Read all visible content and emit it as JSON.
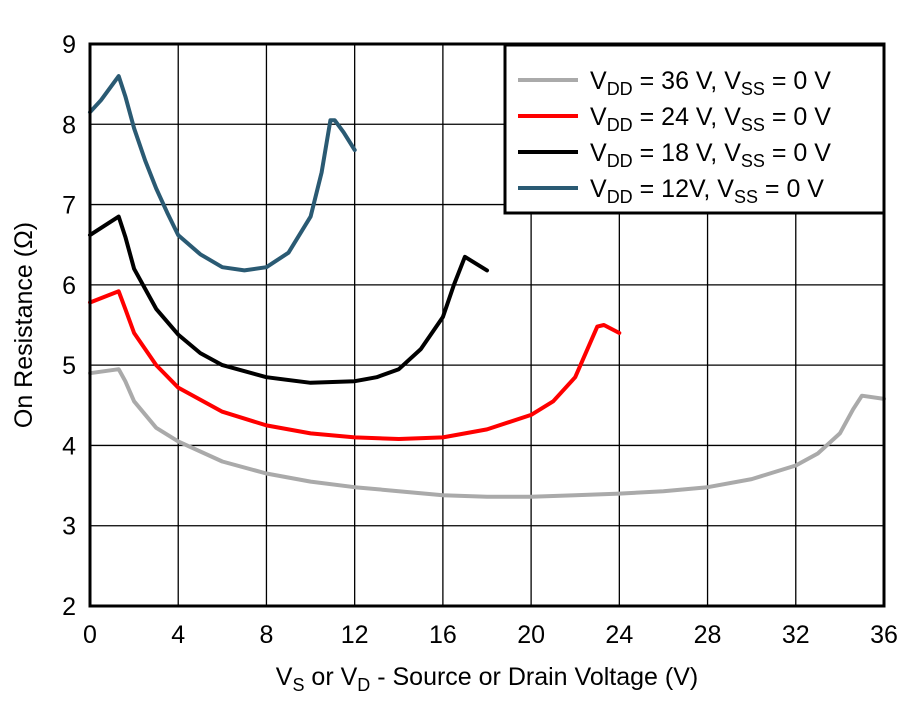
{
  "chart_data": {
    "type": "line",
    "title": "",
    "xlabel": {
      "main_pre": "V",
      "sub1": "S",
      "mid": " or V",
      "sub2": "D",
      "post": " - Source or Drain Voltage (V)"
    },
    "ylabel": "On Resistance (Ω)",
    "xlim": [
      0,
      36
    ],
    "ylim": [
      2,
      9
    ],
    "xticks": [
      0,
      4,
      8,
      12,
      16,
      20,
      24,
      28,
      32,
      36
    ],
    "yticks": [
      2,
      3,
      4,
      5,
      6,
      7,
      8,
      9
    ],
    "grid": true,
    "legend_position": "top-right",
    "series": [
      {
        "name": "VDD = 36 V, VSS = 0 V",
        "legend": {
          "a": "V",
          "s1": "DD",
          "b": " = 36 V, V",
          "s2": "SS",
          "c": " = 0 V"
        },
        "color": "#aaaaaa",
        "x": [
          0,
          1.3,
          1.6,
          2,
          3,
          4,
          6,
          8,
          10,
          12,
          14,
          16,
          18,
          20,
          22,
          24,
          26,
          28,
          30,
          32,
          33,
          34,
          34.6,
          35,
          36
        ],
        "y": [
          4.9,
          4.95,
          4.8,
          4.55,
          4.22,
          4.05,
          3.8,
          3.65,
          3.55,
          3.48,
          3.43,
          3.38,
          3.36,
          3.36,
          3.38,
          3.4,
          3.43,
          3.48,
          3.58,
          3.75,
          3.9,
          4.15,
          4.45,
          4.62,
          4.58
        ]
      },
      {
        "name": "VDD = 24 V, VSS = 0 V",
        "legend": {
          "a": "V",
          "s1": "DD",
          "b": " = 24 V, V",
          "s2": "SS",
          "c": " = 0 V"
        },
        "color": "#ff0000",
        "x": [
          0,
          1.3,
          1.6,
          2,
          3,
          4,
          6,
          8,
          10,
          12,
          14,
          16,
          18,
          20,
          21,
          22,
          23,
          23.3,
          24
        ],
        "y": [
          5.78,
          5.92,
          5.7,
          5.4,
          5.0,
          4.72,
          4.42,
          4.25,
          4.15,
          4.1,
          4.08,
          4.1,
          4.2,
          4.38,
          4.55,
          4.85,
          5.48,
          5.5,
          5.4
        ]
      },
      {
        "name": "VDD = 18 V, VSS = 0 V",
        "legend": {
          "a": "V",
          "s1": "DD",
          "b": " = 18 V, V",
          "s2": "SS",
          "c": " = 0 V"
        },
        "color": "#000000",
        "x": [
          0,
          1.3,
          1.6,
          2,
          3,
          4,
          5,
          6,
          8,
          10,
          12,
          13,
          14,
          15,
          16,
          16.5,
          17,
          18
        ],
        "y": [
          6.62,
          6.85,
          6.6,
          6.2,
          5.7,
          5.38,
          5.15,
          5.0,
          4.85,
          4.78,
          4.8,
          4.85,
          4.95,
          5.2,
          5.6,
          6.0,
          6.35,
          6.18
        ]
      },
      {
        "name": "VDD = 12V, VSS = 0 V",
        "legend": {
          "a": "V",
          "s1": "DD",
          "b": " = 12V, V",
          "s2": "SS",
          "c": " = 0 V"
        },
        "color": "#2a5a73",
        "x": [
          0,
          0.5,
          1.3,
          1.6,
          2,
          2.5,
          3,
          3.5,
          4,
          5,
          6,
          7,
          8,
          9,
          10,
          10.5,
          10.9,
          11.1,
          11.5,
          12
        ],
        "y": [
          8.15,
          8.3,
          8.6,
          8.35,
          7.95,
          7.55,
          7.2,
          6.9,
          6.62,
          6.38,
          6.22,
          6.18,
          6.22,
          6.4,
          6.85,
          7.4,
          8.05,
          8.05,
          7.9,
          7.68
        ]
      }
    ]
  }
}
